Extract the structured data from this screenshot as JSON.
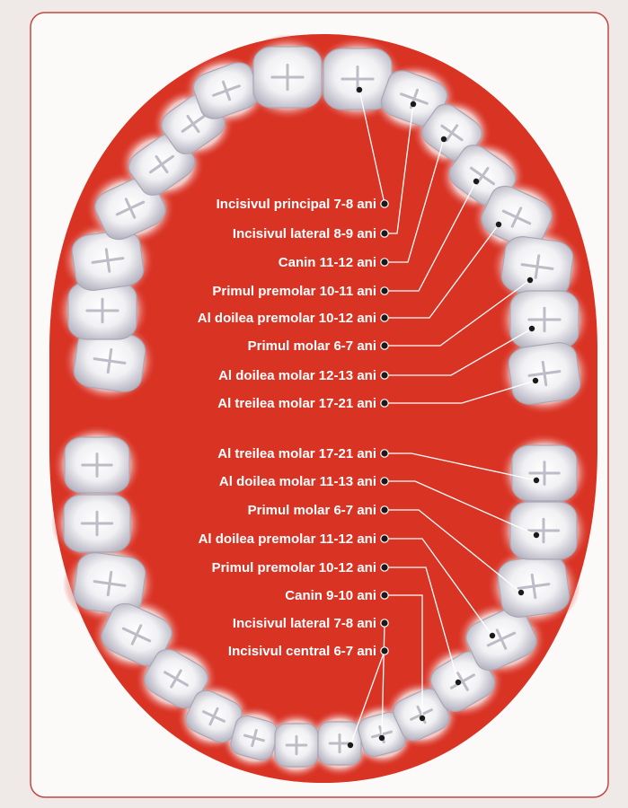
{
  "colors": {
    "background": "#efeae7",
    "frame_border": "#c8453f",
    "frame_fill": "#fbfaf9",
    "mouth_red": "#d93324",
    "gum_pink": "#f2c7c4",
    "tooth_fill": "#f5f5f7",
    "tooth_shadow": "#a9a7b4",
    "leader_line": "#ffffff",
    "dot": "#1a1a1a"
  },
  "upper_jaw": {
    "labels": [
      "Incisivul principal 7-8 ani",
      "Incisivul lateral 8-9 ani",
      "Canin 11-12 ani",
      "Primul premolar 10-11 ani",
      "Al doilea premolar 10-12 ani",
      "Primul molar 6-7 ani",
      "Al doilea molar 12-13 ani",
      "Al treilea molar 17-21 ani"
    ]
  },
  "lower_jaw": {
    "labels": [
      "Al treilea molar 17-21 ani",
      "Al doilea molar 11-13 ani",
      "Primul molar 6-7 ani",
      "Al doilea premolar 11-12 ani",
      "Primul premolar 10-12 ani",
      "Canin 9-10 ani",
      "Incisivul lateral 7-8 ani",
      "Incisivul central 6-7 ani"
    ]
  }
}
